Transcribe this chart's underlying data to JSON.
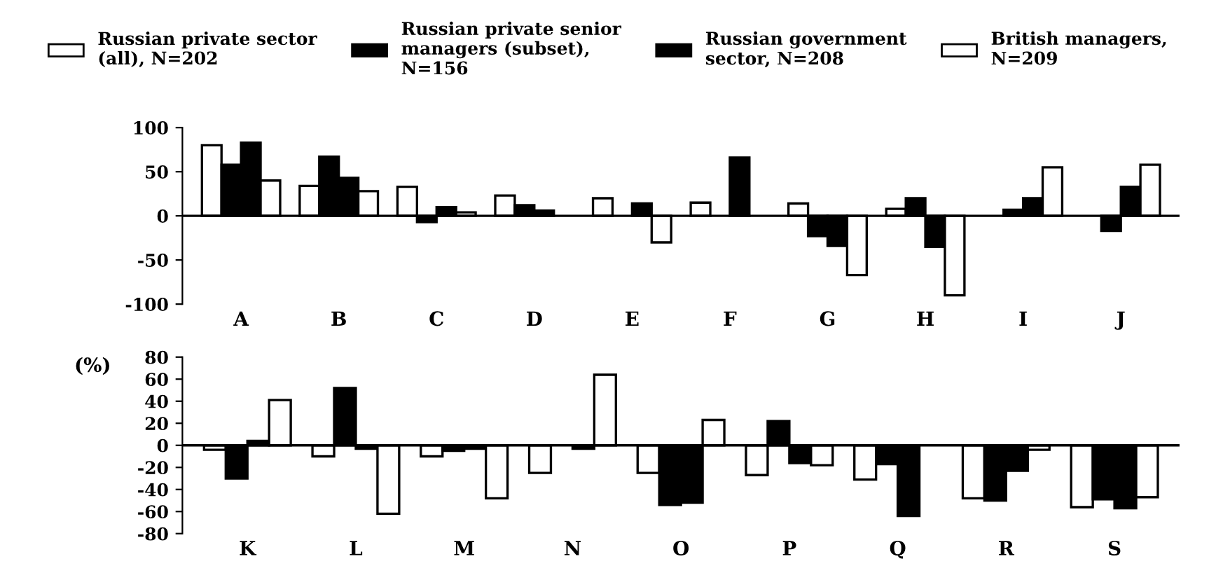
{
  "chart_data": [
    {
      "type": "bar",
      "categories": [
        "A",
        "B",
        "C",
        "D",
        "E",
        "F",
        "G",
        "H",
        "I",
        "J"
      ],
      "ylim": [
        -100,
        100
      ],
      "yticks": [
        -100,
        -50,
        0,
        50,
        100
      ],
      "legend": "top",
      "ref_lines": [
        {
          "axis": "y",
          "value": 0
        }
      ],
      "series": [
        {
          "name": "Russian private sector\n(all), N=202",
          "color": "#ffffff",
          "values": [
            80,
            34,
            33,
            23,
            20,
            15,
            14,
            8,
            null,
            null
          ]
        },
        {
          "name": "Russian private senior\nmanagers (subset),\nN=156",
          "color": "#000000",
          "values": [
            58,
            67,
            -7,
            12,
            null,
            null,
            -23,
            20,
            7,
            -17
          ]
        },
        {
          "name": "Russian government\nsector, N=208",
          "color": "#000000",
          "values": [
            83,
            43,
            10,
            6,
            14,
            66,
            -34,
            -35,
            20,
            33
          ]
        },
        {
          "name": "British managers,\nN=209",
          "color": "#ffffff",
          "values": [
            40,
            28,
            4,
            null,
            -30,
            null,
            -67,
            -90,
            55,
            58
          ]
        }
      ]
    },
    {
      "type": "bar",
      "categories": [
        "K",
        "L",
        "M",
        "N",
        "O",
        "P",
        "Q",
        "R",
        "S"
      ],
      "ylim": [
        -80,
        80
      ],
      "yticks": [
        -80,
        -60,
        -40,
        -20,
        0,
        20,
        40,
        60,
        80
      ],
      "ylabel": "(%)",
      "ref_lines": [
        {
          "axis": "y",
          "value": 0
        }
      ],
      "series": [
        {
          "color": "#ffffff",
          "values": [
            -4,
            -10,
            -10,
            -25,
            -25,
            -27,
            -31,
            -48,
            -56
          ]
        },
        {
          "color": "#000000",
          "values": [
            -30,
            52,
            -5,
            null,
            -54,
            22,
            -17,
            -50,
            -49
          ]
        },
        {
          "color": "#000000",
          "values": [
            4,
            -3,
            -3,
            -3,
            -52,
            -16,
            -64,
            -23,
            -57
          ]
        },
        {
          "color": "#ffffff",
          "values": [
            41,
            -62,
            -48,
            64,
            23,
            -18,
            null,
            -4,
            -47
          ]
        }
      ]
    }
  ]
}
